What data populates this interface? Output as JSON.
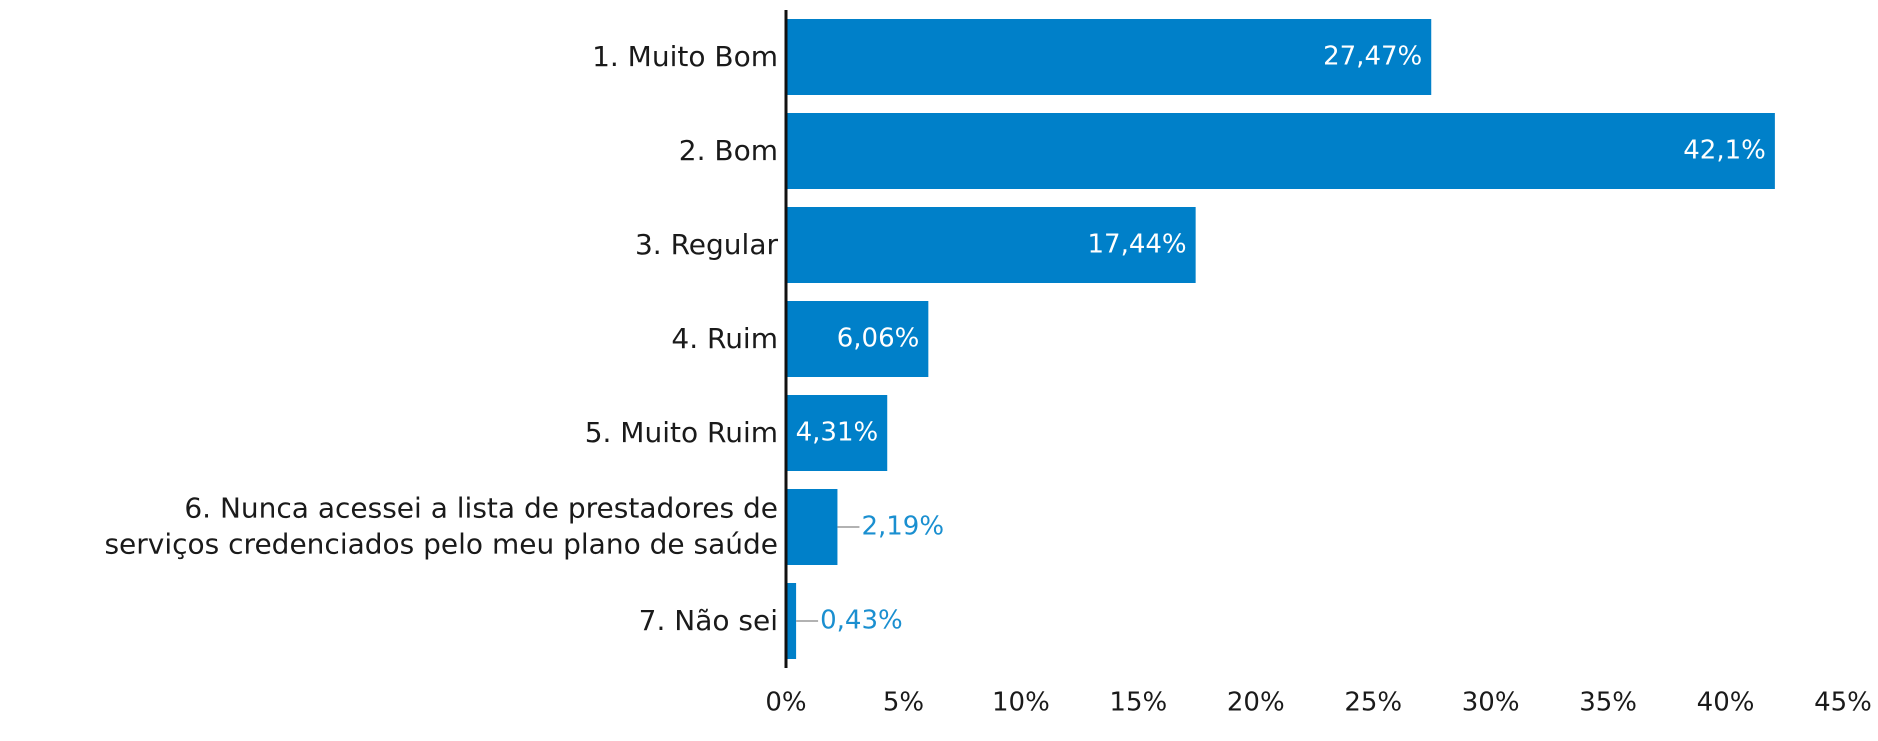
{
  "chart_data": {
    "type": "barh",
    "categories": [
      "1. Muito Bom",
      "2. Bom",
      "3. Regular",
      "4. Ruim",
      "5. Muito Ruim",
      "6. Nunca acessei a lista de prestadores de\nserviços credenciados pelo meu plano de saúde",
      "7. Não sei"
    ],
    "values": [
      27.47,
      42.1,
      17.44,
      6.06,
      4.31,
      2.19,
      0.43
    ],
    "value_labels": [
      "27,47%",
      "42,1%",
      "17,44%",
      "6,06%",
      "4,31%",
      "2,19%",
      "0,43%"
    ],
    "color": "#0080c9",
    "xlim": [
      0,
      45
    ],
    "xticks": [
      {
        "value": 0,
        "label": "0%"
      },
      {
        "value": 5,
        "label": "5%"
      },
      {
        "value": 10,
        "label": "10%"
      },
      {
        "value": 15,
        "label": "15%"
      },
      {
        "value": 20,
        "label": "20%"
      },
      {
        "value": 25,
        "label": "25%"
      },
      {
        "value": 30,
        "label": "30%"
      },
      {
        "value": 35,
        "label": "35%"
      },
      {
        "value": 40,
        "label": "40%"
      },
      {
        "value": 45,
        "label": "45%"
      }
    ],
    "grid": false
  }
}
